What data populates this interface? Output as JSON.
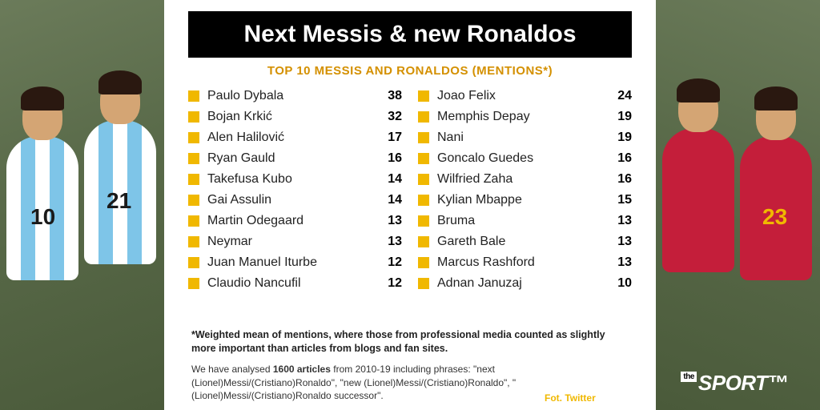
{
  "title": "Next Messis & new Ronaldos",
  "subtitle": "TOP 10 MESSIS AND RONALDOS (MENTIONS*)",
  "left_column": [
    {
      "name": "Paulo Dybala",
      "value": 38
    },
    {
      "name": "Bojan Krkić",
      "value": 32
    },
    {
      "name": "Alen Halilović",
      "value": 17
    },
    {
      "name": "Ryan Gauld",
      "value": 16
    },
    {
      "name": "Takefusa Kubo",
      "value": 14
    },
    {
      "name": "Gai Assulin",
      "value": 14
    },
    {
      "name": "Martin Odegaard",
      "value": 13
    },
    {
      "name": "Neymar",
      "value": 13
    },
    {
      "name": "Juan Manuel Iturbe",
      "value": 12
    },
    {
      "name": "Claudio Nancufil",
      "value": 12
    }
  ],
  "right_column": [
    {
      "name": "Joao Felix",
      "value": 24
    },
    {
      "name": "Memphis Depay",
      "value": 19
    },
    {
      "name": "Nani",
      "value": 19
    },
    {
      "name": "Goncalo Guedes",
      "value": 16
    },
    {
      "name": "Wilfried Zaha",
      "value": 16
    },
    {
      "name": "Kylian Mbappe",
      "value": 15
    },
    {
      "name": "Bruma",
      "value": 13
    },
    {
      "name": "Gareth Bale",
      "value": 13
    },
    {
      "name": "Marcus Rashford",
      "value": 13
    },
    {
      "name": "Adnan Januzaj",
      "value": 10
    }
  ],
  "footnote": "*Weighted mean of mentions, where those from professional media counted as slightly more important than articles from blogs and fan sites.",
  "analysis_prefix": "We have analysed ",
  "analysis_bold": "1600 articles",
  "analysis_suffix": " from 2010-19 including phrases: \"next (Lionel)Messi/(Cristiano)Ronaldo\", \"new (Lionel)Messi/(Cristiano)Ronaldo\", \"(Lionel)Messi/(Cristiano)Ronaldo successor\".",
  "credit": "Fot. Twitter",
  "logo_pre": "the",
  "logo_main": "SPORT",
  "jersey_left_a": "10",
  "jersey_left_b": "21",
  "jersey_right_b": "23",
  "colors": {
    "accent": "#f0b800",
    "title_bg": "#000000",
    "title_fg": "#ffffff",
    "subtitle": "#d49000",
    "panel_bg": "#ffffff",
    "argentina_stripe1": "#ffffff",
    "argentina_stripe2": "#7ec5e8",
    "portugal": "#c41e3a"
  }
}
